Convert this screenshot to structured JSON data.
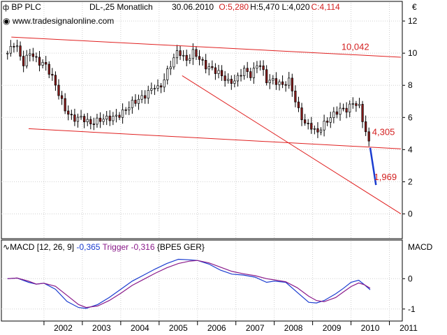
{
  "header": {
    "symbol": "BP PLC",
    "descriptor": "DL-,25 Monatlich",
    "date": "30.06.2010",
    "open": "O:5,280",
    "high": "H:5,470",
    "low": "L:4,020",
    "close": "C:4,114",
    "website": "www.tradesignalonline.com",
    "currency": "€"
  },
  "macd_header": {
    "title": "MACD [12, 26, 9]",
    "value": "-0,365",
    "trigger": "Trigger -0,316",
    "exchange": "{BPE5 GER}",
    "axis_label": "MACD"
  },
  "colors": {
    "up_candle": "#ffffff",
    "down_candle": "#8b1a1a",
    "trendline": "#e02020",
    "projection": "#1a3cd0",
    "macd_line": "#1a3cd0",
    "trigger_line": "#8a1a8a",
    "grid": "#d0d0d0",
    "label_red": "#d32020"
  },
  "chart_data": [
    {
      "type": "candlestick",
      "ylim": [
        -0.5,
        12.7
      ],
      "yticks": [
        0,
        2,
        4,
        6,
        8,
        10,
        12
      ],
      "x_start": 2001.0,
      "x_end": 2011.3,
      "xtick_labels": [
        "2002",
        "2003",
        "2004",
        "2005",
        "2006",
        "2007",
        "2008",
        "2009",
        "2010",
        "2011"
      ],
      "close_anchors": [
        [
          2001.05,
          10.0
        ],
        [
          2001.25,
          10.7
        ],
        [
          2001.45,
          9.3
        ],
        [
          2001.65,
          10.1
        ],
        [
          2001.85,
          9.4
        ],
        [
          2002.0,
          9.4
        ],
        [
          2002.2,
          8.6
        ],
        [
          2002.4,
          7.4
        ],
        [
          2002.55,
          6.5
        ],
        [
          2002.75,
          5.9
        ],
        [
          2003.0,
          6.0
        ],
        [
          2003.2,
          5.6
        ],
        [
          2003.5,
          5.9
        ],
        [
          2003.8,
          6.0
        ],
        [
          2004.0,
          6.2
        ],
        [
          2004.3,
          6.9
        ],
        [
          2004.6,
          7.3
        ],
        [
          2004.9,
          8.0
        ],
        [
          2005.0,
          7.7
        ],
        [
          2005.3,
          9.3
        ],
        [
          2005.5,
          10.2
        ],
        [
          2005.7,
          9.5
        ],
        [
          2005.9,
          10.1
        ],
        [
          2006.0,
          9.8
        ],
        [
          2006.2,
          9.2
        ],
        [
          2006.4,
          9.0
        ],
        [
          2006.6,
          8.7
        ],
        [
          2006.8,
          8.2
        ],
        [
          2007.0,
          8.3
        ],
        [
          2007.2,
          9.0
        ],
        [
          2007.4,
          8.6
        ],
        [
          2007.6,
          9.5
        ],
        [
          2007.8,
          8.3
        ],
        [
          2008.0,
          8.3
        ],
        [
          2008.2,
          8.0
        ],
        [
          2008.4,
          8.3
        ],
        [
          2008.6,
          6.6
        ],
        [
          2008.8,
          5.6
        ],
        [
          2008.95,
          5.5
        ],
        [
          2009.1,
          5.0
        ],
        [
          2009.3,
          5.6
        ],
        [
          2009.5,
          6.1
        ],
        [
          2009.7,
          6.5
        ],
        [
          2009.9,
          6.5
        ],
        [
          2010.05,
          6.9
        ],
        [
          2010.2,
          6.8
        ],
        [
          2010.35,
          5.4
        ],
        [
          2010.5,
          4.11
        ]
      ],
      "trendlines": [
        {
          "from": [
            2001.15,
            11.0
          ],
          "to": [
            2011.3,
            9.75
          ]
        },
        {
          "from": [
            2001.6,
            5.3
          ],
          "to": [
            2011.3,
            4.05
          ]
        },
        {
          "from": [
            2005.6,
            8.6
          ],
          "to": [
            2011.3,
            0.0
          ]
        }
      ],
      "projection": {
        "from": [
          2010.5,
          4.11
        ],
        "to": [
          2010.65,
          1.8
        ]
      },
      "annotations": [
        {
          "text": "10,042",
          "x": 2009.75,
          "y": 10.2
        },
        {
          "text": "4,305",
          "x": 2010.55,
          "y": 4.9
        },
        {
          "text": "1,969",
          "x": 2010.6,
          "y": 2.1
        }
      ]
    },
    {
      "type": "line",
      "name": "MACD",
      "ylim": [
        -1.35,
        0.72
      ],
      "yticks": [
        0,
        -1
      ],
      "series": [
        {
          "name": "MACD",
          "points": [
            [
              2001.05,
              0.0
            ],
            [
              2001.3,
              0.02
            ],
            [
              2001.6,
              -0.12
            ],
            [
              2001.8,
              -0.18
            ],
            [
              2002.0,
              -0.15
            ],
            [
              2002.3,
              -0.35
            ],
            [
              2002.6,
              -0.75
            ],
            [
              2002.9,
              -0.95
            ],
            [
              2003.1,
              -0.98
            ],
            [
              2003.4,
              -0.85
            ],
            [
              2003.7,
              -0.62
            ],
            [
              2004.0,
              -0.35
            ],
            [
              2004.3,
              -0.08
            ],
            [
              2004.6,
              0.12
            ],
            [
              2004.9,
              0.32
            ],
            [
              2005.2,
              0.5
            ],
            [
              2005.5,
              0.64
            ],
            [
              2005.8,
              0.62
            ],
            [
              2006.0,
              0.6
            ],
            [
              2006.3,
              0.48
            ],
            [
              2006.6,
              0.28
            ],
            [
              2006.9,
              0.15
            ],
            [
              2007.2,
              0.12
            ],
            [
              2007.5,
              0.05
            ],
            [
              2007.8,
              -0.12
            ],
            [
              2008.0,
              -0.08
            ],
            [
              2008.3,
              -0.12
            ],
            [
              2008.6,
              -0.45
            ],
            [
              2008.9,
              -0.78
            ],
            [
              2009.1,
              -0.8
            ],
            [
              2009.3,
              -0.72
            ],
            [
              2009.6,
              -0.5
            ],
            [
              2009.8,
              -0.32
            ],
            [
              2010.0,
              -0.12
            ],
            [
              2010.2,
              -0.05
            ],
            [
              2010.35,
              -0.2
            ],
            [
              2010.5,
              -0.365
            ]
          ]
        },
        {
          "name": "Trigger",
          "points": [
            [
              2001.05,
              0.0
            ],
            [
              2001.3,
              0.02
            ],
            [
              2001.6,
              -0.08
            ],
            [
              2001.8,
              -0.18
            ],
            [
              2002.0,
              -0.15
            ],
            [
              2002.3,
              -0.25
            ],
            [
              2002.6,
              -0.55
            ],
            [
              2002.9,
              -0.85
            ],
            [
              2003.1,
              -0.95
            ],
            [
              2003.4,
              -0.9
            ],
            [
              2003.7,
              -0.72
            ],
            [
              2004.0,
              -0.48
            ],
            [
              2004.3,
              -0.22
            ],
            [
              2004.6,
              -0.02
            ],
            [
              2004.9,
              0.18
            ],
            [
              2005.2,
              0.36
            ],
            [
              2005.5,
              0.5
            ],
            [
              2005.8,
              0.58
            ],
            [
              2006.0,
              0.6
            ],
            [
              2006.3,
              0.52
            ],
            [
              2006.6,
              0.38
            ],
            [
              2006.9,
              0.24
            ],
            [
              2007.2,
              0.16
            ],
            [
              2007.5,
              0.1
            ],
            [
              2007.8,
              0.0
            ],
            [
              2008.0,
              -0.04
            ],
            [
              2008.3,
              -0.1
            ],
            [
              2008.6,
              -0.3
            ],
            [
              2008.9,
              -0.58
            ],
            [
              2009.1,
              -0.72
            ],
            [
              2009.3,
              -0.76
            ],
            [
              2009.6,
              -0.62
            ],
            [
              2009.8,
              -0.44
            ],
            [
              2010.0,
              -0.26
            ],
            [
              2010.2,
              -0.14
            ],
            [
              2010.35,
              -0.2
            ],
            [
              2010.5,
              -0.316
            ]
          ]
        }
      ]
    }
  ]
}
